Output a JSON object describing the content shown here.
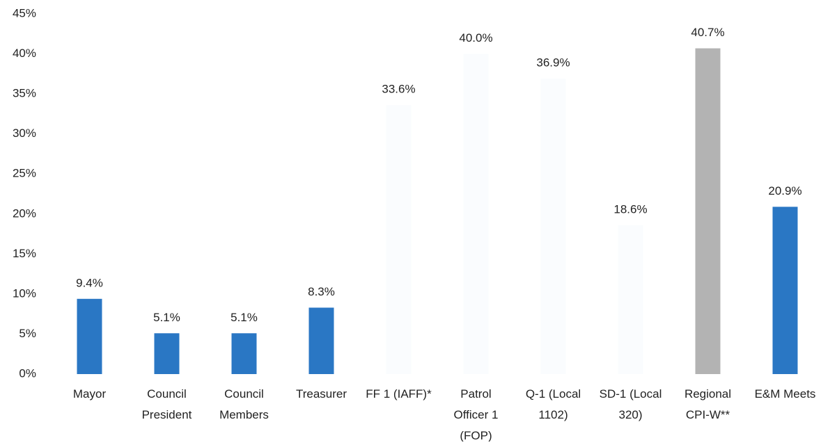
{
  "chart_data": {
    "type": "bar",
    "categories": [
      "Mayor",
      "Council\nPresident",
      "Council\nMembers",
      "Treasurer",
      "FF 1 (IAFF)*",
      "Patrol\nOfficer 1\n(FOP)",
      "Q-1 (Local\n1102)",
      "SD-1 (Local\n320)",
      "Regional\nCPI-W**",
      "E&M Meets"
    ],
    "values": [
      9.4,
      5.1,
      5.1,
      8.3,
      33.6,
      40.0,
      36.9,
      18.6,
      40.7,
      20.9
    ],
    "value_labels": [
      "9.4%",
      "5.1%",
      "5.1%",
      "8.3%",
      "33.6%",
      "40.0%",
      "36.9%",
      "18.6%",
      "40.7%",
      "20.9%"
    ],
    "colors": [
      "#2a77c4",
      "#2a77c4",
      "#2a77c4",
      "#2a77c4",
      "#fafcfe",
      "#fafcfe",
      "#fafcfe",
      "#fafcfe",
      "#b3b3b3",
      "#2a77c4"
    ],
    "ylim": [
      0,
      45
    ],
    "yticks": [
      {
        "value": 0,
        "label": "0%"
      },
      {
        "value": 5,
        "label": "5%"
      },
      {
        "value": 10,
        "label": "10%"
      },
      {
        "value": 15,
        "label": "15%"
      },
      {
        "value": 20,
        "label": "20%"
      },
      {
        "value": 25,
        "label": "25%"
      },
      {
        "value": 30,
        "label": "30%"
      },
      {
        "value": 35,
        "label": "35%"
      },
      {
        "value": 40,
        "label": "40%"
      },
      {
        "value": 45,
        "label": "45%"
      }
    ],
    "grid": false
  }
}
